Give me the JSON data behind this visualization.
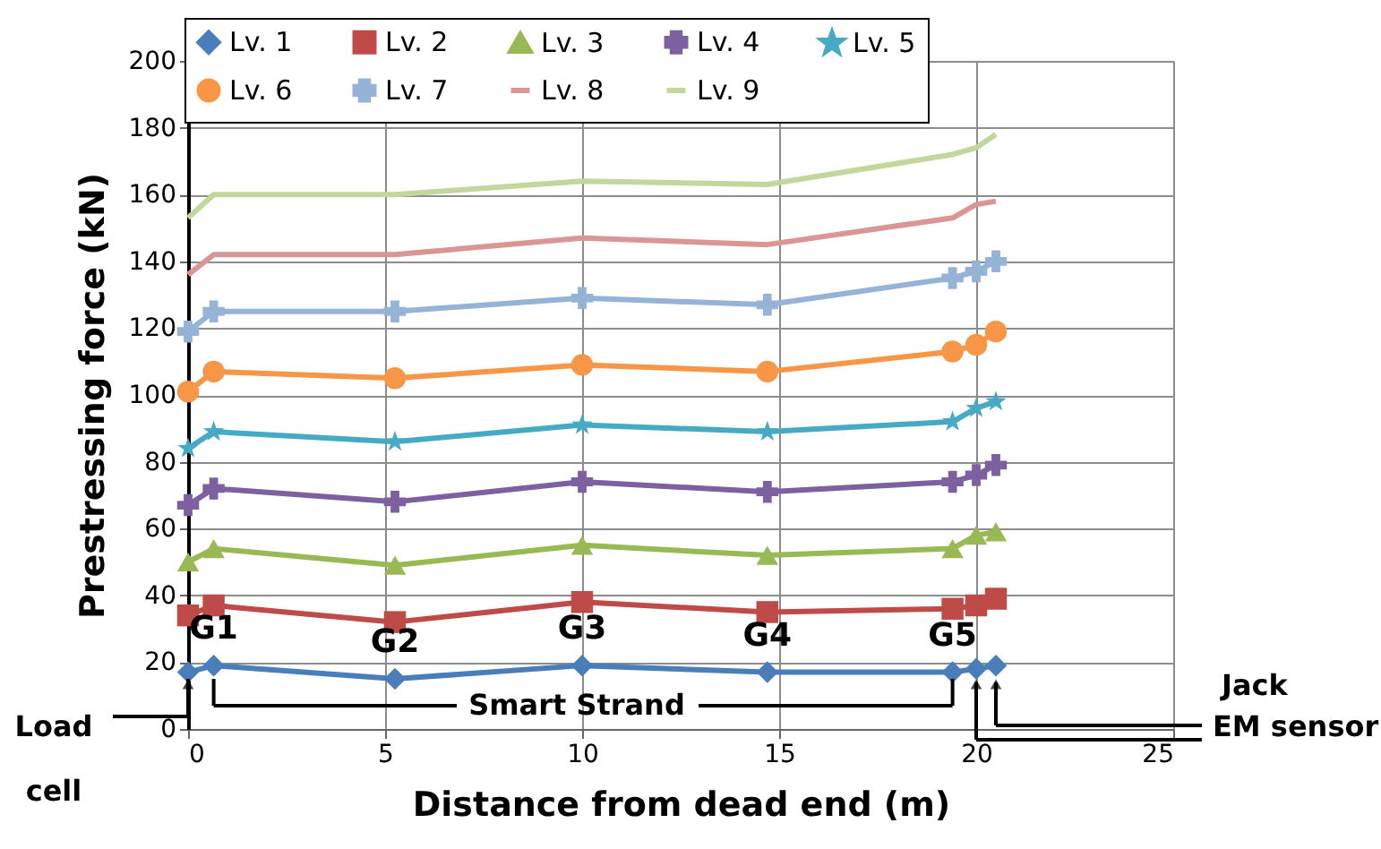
{
  "chart_data": {
    "type": "line",
    "xlabel": "Distance from dead end (m)",
    "ylabel": "Prestressing force (kN)",
    "x": [
      0,
      0.65,
      5.25,
      10,
      14.7,
      19.4,
      20,
      20.5
    ],
    "series": [
      {
        "name": "Lv. 1",
        "color": "#4a7ebb",
        "marker": "diamond",
        "values": [
          17,
          19,
          15,
          19,
          17,
          17,
          18,
          19
        ]
      },
      {
        "name": "Lv. 2",
        "color": "#be4b48",
        "marker": "square",
        "values": [
          34,
          37,
          32,
          38,
          35,
          36,
          37,
          39
        ]
      },
      {
        "name": "Lv. 3",
        "color": "#98b954",
        "marker": "triangle",
        "values": [
          50,
          54,
          49,
          55,
          52,
          54,
          58,
          59
        ]
      },
      {
        "name": "Lv. 4",
        "color": "#7d60a0",
        "marker": "cross",
        "values": [
          67,
          72,
          68,
          74,
          71,
          74,
          76,
          79
        ]
      },
      {
        "name": "Lv. 5",
        "color": "#46aac5",
        "marker": "star",
        "values": [
          84,
          89,
          86,
          91,
          89,
          92,
          96,
          98
        ]
      },
      {
        "name": "Lv. 6",
        "color": "#f79646",
        "marker": "circle",
        "values": [
          101,
          107,
          105,
          109,
          107,
          113,
          115,
          119
        ]
      },
      {
        "name": "Lv. 7",
        "color": "#95b3d7",
        "marker": "cross",
        "values": [
          119,
          125,
          125,
          129,
          127,
          135,
          137,
          140
        ]
      },
      {
        "name": "Lv. 8",
        "color": "#da9694",
        "marker": "none",
        "values": [
          136,
          142,
          142,
          147,
          145,
          153,
          157,
          158
        ]
      },
      {
        "name": "Lv. 9",
        "color": "#c3d69b",
        "marker": "none",
        "values": [
          153,
          160,
          160,
          164,
          163,
          172,
          174,
          178
        ]
      }
    ],
    "xlim": [
      0,
      25
    ],
    "xticks": [
      0,
      5,
      10,
      15,
      20,
      25
    ],
    "ylim": [
      0,
      200
    ],
    "yticks": [
      0,
      20,
      40,
      60,
      80,
      100,
      120,
      140,
      160,
      180,
      200
    ],
    "grid": true,
    "legend": "top",
    "annotations": [
      {
        "text": "G1",
        "x": 0.65,
        "y": 19
      },
      {
        "text": "G2",
        "x": 5.25,
        "y": 15
      },
      {
        "text": "G3",
        "x": 10,
        "y": 19
      },
      {
        "text": "G4",
        "x": 14.7,
        "y": 17
      },
      {
        "text": "G5",
        "x": 19.4,
        "y": 17
      },
      "Smart Strand",
      "Load cell",
      "Jack",
      "EM sensor"
    ]
  }
}
